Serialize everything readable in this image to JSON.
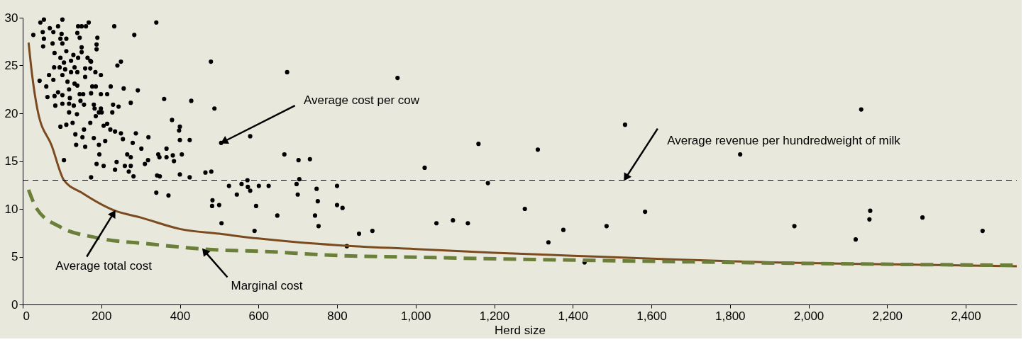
{
  "chart_data": {
    "type": "scatter",
    "xlabel": "Herd size",
    "xlim": [
      0,
      2530
    ],
    "ylim": [
      0,
      30
    ],
    "xticks": [
      0,
      200,
      400,
      600,
      800,
      {
        "value": 1000,
        "label": "1,000"
      },
      {
        "value": 1200,
        "label": "1,200"
      },
      {
        "value": 1400,
        "label": "1,400"
      },
      {
        "value": 1600,
        "label": "1,600"
      },
      {
        "value": 1800,
        "label": "1,800"
      },
      {
        "value": 2000,
        "label": "2,000"
      },
      {
        "value": 2200,
        "label": "2,200"
      },
      {
        "value": 2400,
        "label": "2,400"
      }
    ],
    "yticks": [
      0,
      5,
      10,
      15,
      20,
      25,
      30
    ],
    "grid": false,
    "series": [
      {
        "marker": "circle",
        "color": "#000000",
        "x": [
          27,
          43,
          45,
          54,
          51,
          54,
          52,
          60,
          63,
          67,
          69,
          78,
          76,
          81,
          80,
          78,
          81,
          83,
          90,
          90,
          96,
          96,
          94,
          96,
          101,
          99,
          101,
          105,
          101,
          101,
          101,
          105,
          111,
          111,
          108,
          114,
          111,
          118,
          118,
          118,
          123,
          123,
          120,
          127,
          129,
          132,
          132,
          130,
          138,
          134,
          136,
          141,
          139,
          145,
          141,
          139,
          139,
          145,
          147,
          150,
          150,
          150,
          154,
          156,
          152,
          156,
          159,
          159,
          159,
          161,
          168,
          165,
          172,
          172,
          174,
          174,
          172,
          177,
          181,
          181,
          183,
          185,
          186,
          186,
          188,
          190,
          188,
          188,
          194,
          194,
          195,
          199,
          199,
          199,
          201,
          206,
          206,
          210,
          215,
          215,
          223,
          224,
          228,
          230,
          235,
          235,
          233,
          241,
          250,
          244,
          250,
          239,
          255,
          257,
          260,
          266,
          270,
          275,
          275,
          275,
          280,
          282,
          284,
          288,
          293,
          302,
          311,
          320,
          319,
          340,
          342,
          349,
          345,
          348,
          360,
          366,
          366,
          380,
          382,
          385,
          398,
          400,
          400,
          400,
          405,
          425,
          425,
          429,
          465,
          479,
          480,
          488,
          505,
          579,
          666,
          673,
          702,
          731,
          340,
          371,
          525,
          545,
          557,
          572,
          573,
          579,
          601,
          626,
          594,
          590,
          648,
          697,
          704,
          700,
          748,
          751,
          744,
          753,
          483,
          482,
          500,
          506,
          174,
          954,
          800,
          800,
          814,
          856,
          890,
          825,
          1023,
          1053,
          1095,
          1133,
          1160,
          1184,
          1278,
          1311,
          1338,
          1376,
          1430,
          1486,
          1533,
          1584,
          1826,
          1964,
          2134,
          2120,
          2155,
          2157,
          2290,
          2443
        ],
        "values": [
          28.2,
          23.4,
          29.5,
          29.8,
          28.5,
          27.8,
          27.0,
          22.8,
          21.7,
          24.0,
          28.9,
          28.5,
          27.3,
          26.3,
          24.8,
          23.5,
          21.8,
          20.8,
          22.2,
          29.1,
          27.8,
          25.8,
          24.8,
          18.6,
          29.8,
          28.3,
          27.3,
          25.3,
          24.0,
          21.9,
          21.0,
          15.1,
          27.8,
          26.5,
          24.6,
          23.3,
          18.8,
          22.5,
          21.0,
          20.1,
          25.5,
          24.3,
          21.6,
          19.0,
          26.1,
          24.8,
          23.1,
          20.8,
          19.9,
          17.8,
          16.7,
          29.1,
          28.4,
          27.9,
          25.8,
          24.3,
          22.9,
          22.0,
          21.3,
          29.1,
          26.9,
          26.4,
          22.0,
          20.9,
          17.5,
          18.3,
          16.5,
          23.8,
          24.7,
          29.1,
          29.5,
          25.8,
          25.5,
          24.7,
          25.4,
          22.1,
          19.0,
          22.8,
          17.4,
          20.9,
          20.5,
          24.3,
          22.8,
          19.7,
          14.7,
          27.9,
          27.2,
          26.7,
          20.1,
          16.7,
          15.7,
          24.0,
          22.0,
          20.5,
          20.1,
          18.7,
          14.5,
          17.1,
          22.0,
          18.9,
          18.3,
          22.8,
          20.1,
          20.9,
          18.1,
          14.1,
          29.1,
          25.0,
          25.4,
          20.7,
          17.9,
          14.9,
          17.3,
          22.6,
          14.5,
          15.7,
          13.9,
          21.1,
          15.4,
          14.5,
          16.9,
          13.4,
          28.2,
          17.9,
          22.4,
          16.3,
          14.7,
          17.5,
          15.1,
          29.5,
          13.5,
          13.4,
          15.7,
          15.4,
          21.5,
          16.3,
          15.4,
          19.3,
          15.6,
          15.0,
          18.2,
          18.6,
          17.2,
          13.6,
          15.7,
          17.2,
          13.3,
          21.3,
          13.8,
          25.4,
          13.9,
          20.5,
          16.9,
          17.6,
          15.7,
          24.3,
          15.1,
          15.2,
          11.7,
          11.4,
          12.4,
          11.5,
          12.6,
          13.0,
          12.3,
          11.9,
          12.4,
          12.4,
          10.3,
          7.7,
          9.3,
          12.6,
          13.1,
          11.5,
          12.1,
          10.8,
          9.3,
          8.2,
          10.9,
          10.3,
          10.4,
          8.5,
          13.3,
          23.7,
          12.4,
          10.4,
          10.1,
          7.4,
          7.7,
          6.1,
          14.3,
          8.5,
          8.8,
          8.5,
          16.8,
          12.7,
          10.0,
          16.2,
          6.5,
          7.8,
          4.4,
          8.2,
          18.8,
          9.7,
          15.7,
          8.2,
          20.4,
          6.8,
          8.9,
          9.8,
          9.1,
          7.7
        ]
      },
      {
        "type": "line",
        "color": "#7b4a1e",
        "line_style": "solid",
        "x": [
          15,
          24,
          38,
          74,
          105,
          150,
          235,
          300,
          400,
          500,
          600,
          800,
          1000,
          1200,
          1400,
          1600,
          1900,
          2200,
          2530
        ],
        "values": [
          27.4,
          24.0,
          20.3,
          16.6,
          13.0,
          11.7,
          9.8,
          9.1,
          7.9,
          7.4,
          6.9,
          6.2,
          5.8,
          5.4,
          5.1,
          4.8,
          4.4,
          4.2,
          4.0
        ]
      },
      {
        "type": "line",
        "color": "#6b7f3a",
        "line_style": "dashed",
        "x": [
          15,
          36,
          96,
          186,
          331,
          458,
          639,
          760,
          1050,
          1471,
          2219,
          2530
        ],
        "values": [
          12.0,
          10.0,
          8.1,
          7.0,
          6.3,
          5.8,
          5.5,
          5.2,
          4.9,
          4.6,
          4.2,
          4.1
        ]
      }
    ],
    "ref_lines": [
      {
        "axis": "y",
        "value": 13,
        "color": "#000000",
        "line_style": "dashed"
      }
    ],
    "annotations": [
      {
        "text": "Average cost per cow",
        "x": 505,
        "y": 16.9
      },
      {
        "text": "Average revenue per hundredweight of milk",
        "x": 1531,
        "y": 13
      },
      {
        "text": "Average total cost",
        "x": 235,
        "y": 9.8
      },
      {
        "text": "Marginal cost",
        "x": 458,
        "y": 5.8
      }
    ]
  }
}
